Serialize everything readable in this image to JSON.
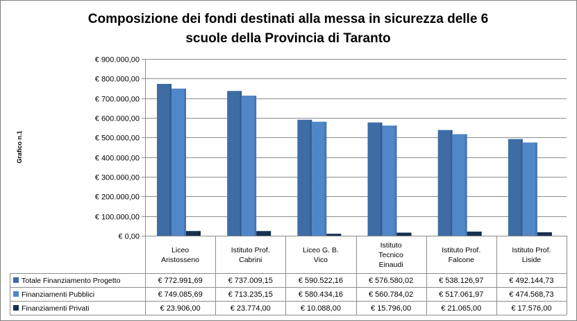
{
  "chart_data": {
    "type": "bar",
    "title_lines": [
      "Composizione dei fondi destinati alla messa in sicurezza delle 6",
      "scuole della Provincia di Taranto"
    ],
    "ylabel": "Grafico n.1",
    "ylim": [
      0,
      900000
    ],
    "yticks": [
      {
        "value": 0,
        "label": "€ 0,00"
      },
      {
        "value": 100000,
        "label": "€ 100.000,00"
      },
      {
        "value": 200000,
        "label": "€ 200.000,00"
      },
      {
        "value": 300000,
        "label": "€ 300.000,00"
      },
      {
        "value": 400000,
        "label": "€ 400.000,00"
      },
      {
        "value": 500000,
        "label": "€ 500.000,00"
      },
      {
        "value": 600000,
        "label": "€ 600.000,00"
      },
      {
        "value": 700000,
        "label": "€ 700.000,00"
      },
      {
        "value": 800000,
        "label": "€ 800.000,00"
      },
      {
        "value": 900000,
        "label": "€ 900.000,00"
      }
    ],
    "grid": true,
    "legend": "data-table",
    "categories": [
      [
        "Liceo",
        "Aristosseno"
      ],
      [
        "Istituto Prof.",
        "Cabrini"
      ],
      [
        "Liceo G. B.",
        "Vico"
      ],
      [
        "Istituto",
        "Tecnico",
        "Einaudi"
      ],
      [
        "Istituto Prof.",
        "Falcone"
      ],
      [
        "Istituto Prof.",
        "Liside"
      ]
    ],
    "series": [
      {
        "name": "Totale Finanziamento Progetto",
        "color": "#3e6da6",
        "values": [
          772991.69,
          737009.15,
          590522.16,
          576580.02,
          538126.97,
          492144.73
        ],
        "labels": [
          "€ 772.991,69",
          "€ 737.009,15",
          "€ 590.522,16",
          "€ 576.580,02",
          "€ 538.126,97",
          "€ 492.144,73"
        ]
      },
      {
        "name": "Finanziamenti Pubblici",
        "color": "#4f87c8",
        "values": [
          749085.69,
          713235.15,
          580434.16,
          560784.02,
          517061.97,
          474568.73
        ],
        "labels": [
          "€ 749.085,69",
          "€ 713.235,15",
          "€ 580.434,16",
          "€ 560.784,02",
          "€ 517.061,97",
          "€ 474.568,73"
        ]
      },
      {
        "name": "Finanziamenti Privati",
        "color": "#17324f",
        "values": [
          23906.0,
          23774.0,
          10088.0,
          15796.0,
          21065.0,
          17576.0
        ],
        "labels": [
          "€ 23.906,00",
          "€ 23.774,00",
          "€ 10.088,00",
          "€ 15.796,00",
          "€ 21.065,00",
          "€ 17.576,00"
        ]
      }
    ]
  }
}
